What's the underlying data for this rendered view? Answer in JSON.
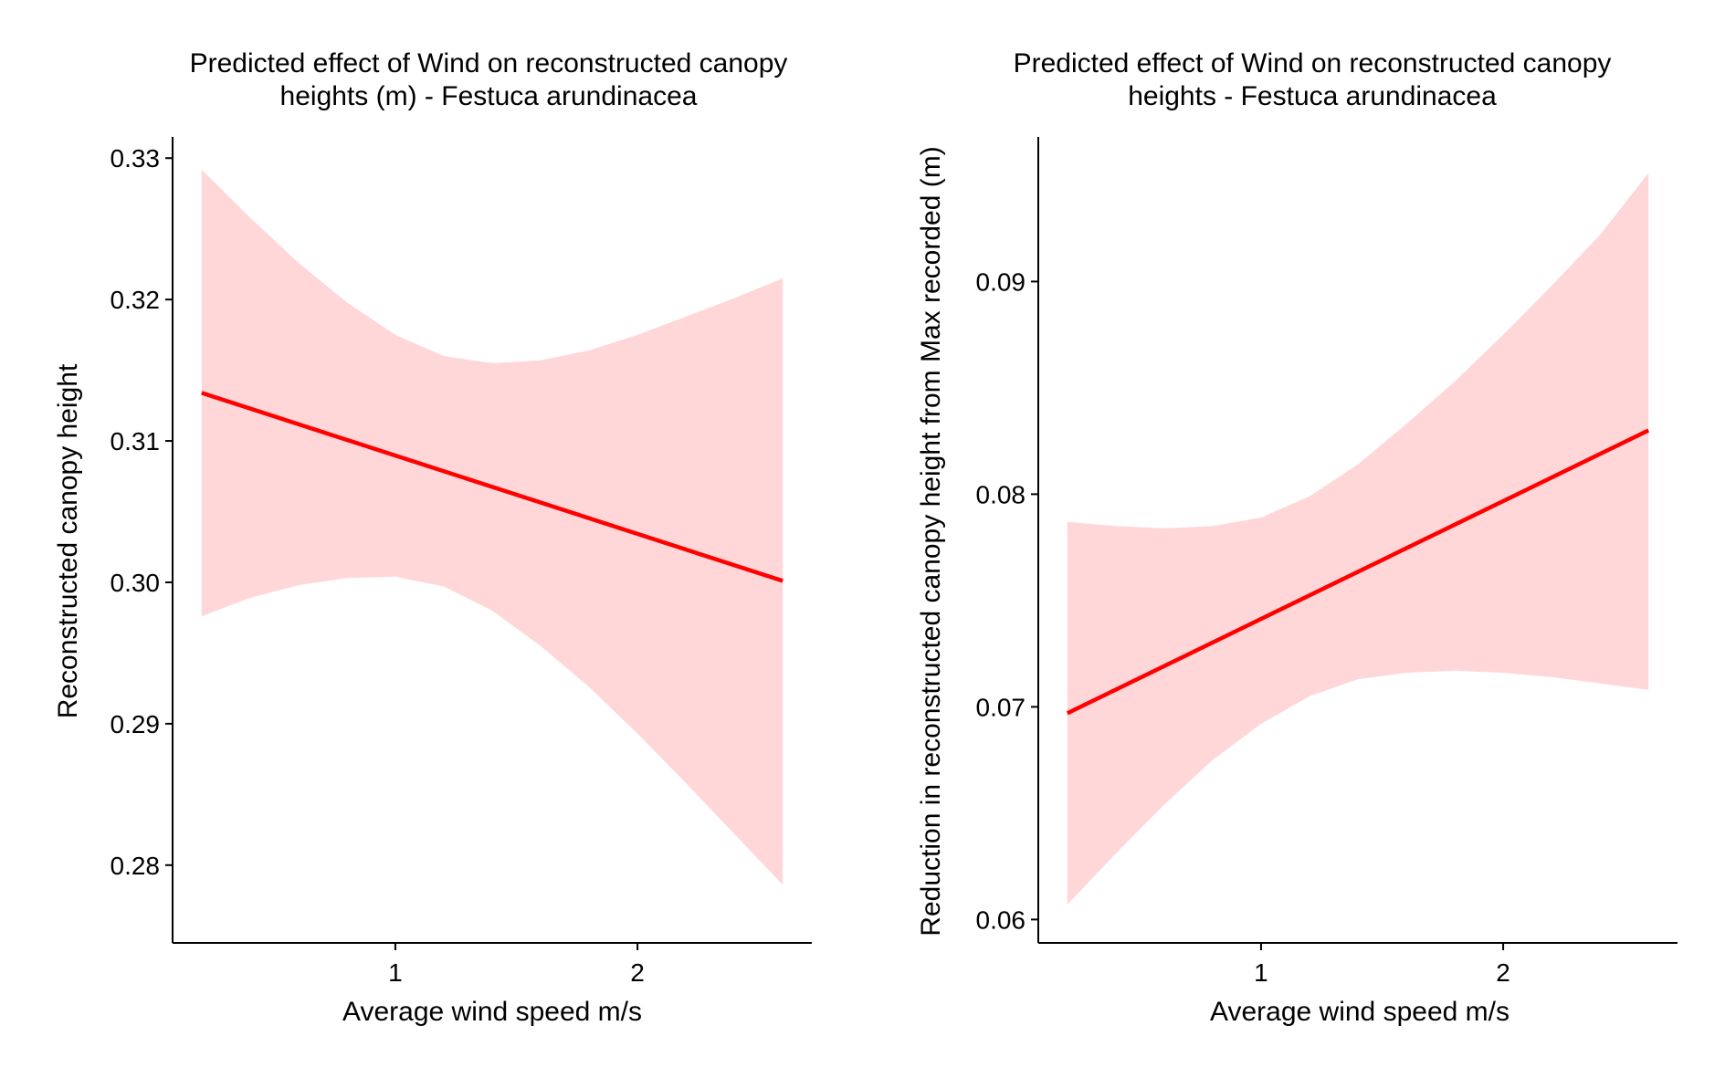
{
  "chart_data": [
    {
      "type": "line",
      "title_line1": "Predicted effect of Wind on reconstructed canopy",
      "title_line2": "heights (m) - Festuca arundinacea",
      "xlabel": "Average wind speed m/s",
      "ylabel": "Reconstructed canopy height",
      "xlim": [
        0.08,
        2.72
      ],
      "ylim": [
        0.2745,
        0.3315
      ],
      "x_ticks": [
        1,
        2
      ],
      "x_tick_labels": [
        "1",
        "2"
      ],
      "y_ticks": [
        0.28,
        0.29,
        0.3,
        0.31,
        0.32,
        0.33
      ],
      "y_tick_labels": [
        "0.28",
        "0.29",
        "0.30",
        "0.31",
        "0.32",
        "0.33"
      ],
      "grid": false,
      "colors": {
        "line": "#ff0000",
        "ribbon": "#ffd7d9"
      },
      "series": [
        {
          "x": [
            0.2,
            2.6
          ],
          "y": [
            0.3134,
            0.3001
          ]
        }
      ],
      "ribbon": {
        "x": [
          0.2,
          0.4,
          0.6,
          0.8,
          1.0,
          1.2,
          1.4,
          1.6,
          1.8,
          2.0,
          2.2,
          2.4,
          2.6
        ],
        "upper": [
          0.3292,
          0.3258,
          0.3226,
          0.3198,
          0.3175,
          0.316,
          0.3155,
          0.3157,
          0.3164,
          0.3175,
          0.3188,
          0.3201,
          0.3215
        ],
        "lower": [
          0.2976,
          0.2989,
          0.2998,
          0.3003,
          0.3004,
          0.2997,
          0.298,
          0.2955,
          0.2926,
          0.2893,
          0.2858,
          0.2822,
          0.2786
        ]
      }
    },
    {
      "type": "line",
      "title_line1": "Predicted effect of Wind on reconstructed canopy",
      "title_line2": "heights - Festuca arundinacea",
      "xlabel": "Average wind speed m/s",
      "ylabel": "Reduction in reconstructed canopy height from Max recorded (m)",
      "xlim": [
        0.08,
        2.72
      ],
      "ylim": [
        0.0589,
        0.0968
      ],
      "x_ticks": [
        1,
        2
      ],
      "x_tick_labels": [
        "1",
        "2"
      ],
      "y_ticks": [
        0.06,
        0.07,
        0.08,
        0.09
      ],
      "y_tick_labels": [
        "0.06",
        "0.07",
        "0.08",
        "0.09"
      ],
      "grid": false,
      "colors": {
        "line": "#ff0000",
        "ribbon": "#ffd7d9"
      },
      "series": [
        {
          "x": [
            0.2,
            2.6
          ],
          "y": [
            0.0697,
            0.083
          ]
        }
      ],
      "ribbon": {
        "x": [
          0.2,
          0.4,
          0.6,
          0.8,
          1.0,
          1.2,
          1.4,
          1.6,
          1.8,
          2.0,
          2.2,
          2.4,
          2.6
        ],
        "upper": [
          0.0787,
          0.0785,
          0.0784,
          0.0785,
          0.0789,
          0.0799,
          0.0814,
          0.0833,
          0.0853,
          0.0875,
          0.0898,
          0.0922,
          0.0951
        ],
        "lower": [
          0.0607,
          0.0631,
          0.0654,
          0.0675,
          0.0692,
          0.0705,
          0.0713,
          0.0716,
          0.0717,
          0.0716,
          0.0714,
          0.0711,
          0.0708
        ]
      }
    }
  ]
}
